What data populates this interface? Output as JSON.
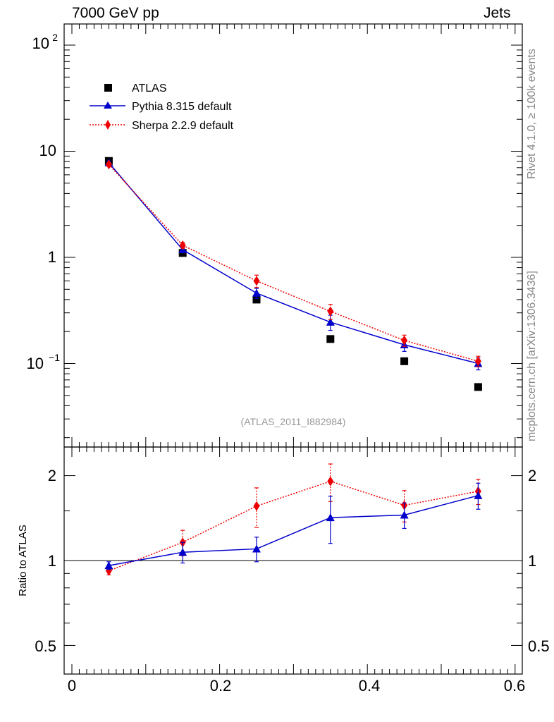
{
  "header": {
    "left": "7000 GeV pp",
    "right": "Jets"
  },
  "side_labels": {
    "rivet": "Rivet 4.1.0, ≥ 100k events",
    "mcplots": "mcplots.cern.ch [arXiv:1306.3436]"
  },
  "colors": {
    "data": "#000000",
    "pythia": "#0000cc",
    "sherpa": "#ee0000",
    "watermark": "#999999"
  },
  "chart_data": [
    {
      "type": "scatter",
      "panel": "main",
      "yscale": "log",
      "xlim": [
        0,
        0.6
      ],
      "ylim": [
        0.02,
        150
      ],
      "ylabel": "",
      "xlabel": "",
      "watermark": "(ATLAS_2011_I882984)",
      "ytick_labels": {
        "p2": "10",
        "p2sup": "2",
        "ten": "10",
        "one": "1",
        "m1": "10",
        "m1sup": "−1"
      },
      "legend_position": "top-left",
      "legend": [
        "ATLAS",
        "Pythia 8.315 default",
        "Sherpa 2.2.9 default"
      ],
      "series": [
        {
          "name": "ATLAS",
          "style": "square",
          "x": [
            0.05,
            0.15,
            0.25,
            0.35,
            0.45,
            0.55
          ],
          "y": [
            8.1,
            1.1,
            0.4,
            0.17,
            0.105,
            0.06
          ]
        },
        {
          "name": "Pythia 8.315 default",
          "style": "line-triangle",
          "x": [
            0.05,
            0.15,
            0.25,
            0.35,
            0.45,
            0.55
          ],
          "y": [
            7.8,
            1.18,
            0.46,
            0.245,
            0.15,
            0.1
          ],
          "err": [
            0.3,
            0.06,
            0.05,
            0.04,
            0.02,
            0.013
          ]
        },
        {
          "name": "Sherpa 2.2.9 default",
          "style": "dotted-diamond",
          "x": [
            0.05,
            0.15,
            0.25,
            0.35,
            0.45,
            0.55
          ],
          "y": [
            7.5,
            1.3,
            0.6,
            0.31,
            0.165,
            0.105
          ],
          "err": [
            0.3,
            0.08,
            0.08,
            0.05,
            0.02,
            0.012
          ]
        }
      ]
    },
    {
      "type": "line",
      "panel": "ratio",
      "yscale": "log",
      "ylabel": "Ratio to ATLAS",
      "xlim": [
        0,
        0.6
      ],
      "ylim": [
        0.4,
        2.4
      ],
      "xtick_labels": [
        "0",
        "0.2",
        "0.4",
        "0.6"
      ],
      "ytick_labels": [
        "0.5",
        "1",
        "2"
      ],
      "reference": 1,
      "series": [
        {
          "name": "Pythia 8.315 default",
          "x": [
            0.05,
            0.15,
            0.25,
            0.35,
            0.45,
            0.55
          ],
          "y": [
            0.96,
            1.07,
            1.1,
            1.42,
            1.45,
            1.7
          ],
          "err": [
            0.03,
            0.09,
            0.11,
            0.27,
            0.15,
            0.18
          ]
        },
        {
          "name": "Sherpa 2.2.9 default",
          "x": [
            0.05,
            0.15,
            0.25,
            0.35,
            0.45,
            0.55
          ],
          "y": [
            0.92,
            1.16,
            1.56,
            1.91,
            1.57,
            1.76
          ],
          "err": [
            0.03,
            0.12,
            0.25,
            0.29,
            0.2,
            0.18
          ]
        }
      ]
    }
  ]
}
